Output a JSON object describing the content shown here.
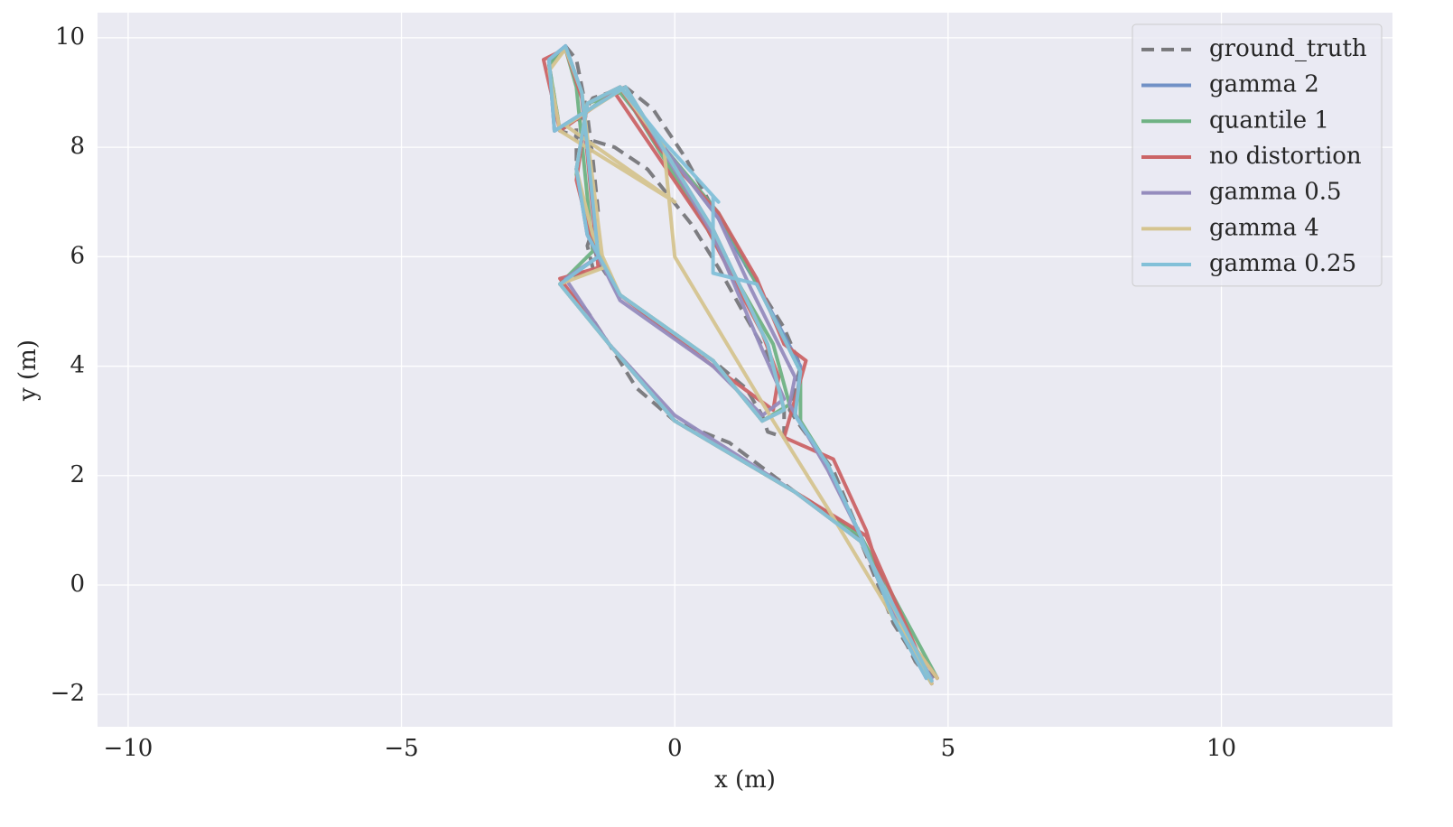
{
  "chart_data": {
    "type": "line",
    "xlabel": "x (m)",
    "ylabel": "y (m)",
    "xlim": [
      -10.56,
      13.13
    ],
    "ylim": [
      -2.59,
      10.46
    ],
    "xticks": [
      {
        "value": -10,
        "label": "−10"
      },
      {
        "value": -5,
        "label": "−5"
      },
      0,
      5,
      10
    ],
    "yticks": [
      {
        "value": -2,
        "label": "−2"
      },
      0,
      2,
      4,
      6,
      8,
      10
    ],
    "grid": true,
    "legend": "upper right",
    "series": [
      {
        "name": "ground_truth",
        "color": "#77777a",
        "linestyle": "dashed",
        "x": [
          4.7,
          4.4,
          4.0,
          3.7,
          3.4,
          2.9,
          2.6,
          2.3,
          2.1,
          2.2,
          2.3,
          2.0,
          1.5,
          0.8,
          0.2,
          -0.4,
          -0.9,
          -1.5,
          -1.8,
          -1.8,
          -1.6,
          -1.4,
          -1.0,
          -0.2,
          0.7,
          1.3,
          1.6,
          1.7,
          2.0,
          2.0,
          1.7,
          1.3,
          0.8,
          0.3,
          -0.5,
          -1.1,
          -2.1,
          -2.3,
          -2.0,
          -1.8,
          -1.6,
          -1.5,
          -1.4,
          -1.6,
          -1.5,
          -2.1,
          -1.6,
          -1.2,
          -0.7,
          0.0,
          1.0,
          2.2,
          3.0,
          3.4,
          4.0,
          4.5,
          4.8
        ],
        "values": [
          -1.75,
          -1.4,
          -0.6,
          0.2,
          0.9,
          2.1,
          2.5,
          2.9,
          3.2,
          3.6,
          4.0,
          4.7,
          5.5,
          6.7,
          7.8,
          8.7,
          9.1,
          8.9,
          8.4,
          7.6,
          6.6,
          5.9,
          5.3,
          4.7,
          4.1,
          3.6,
          3.1,
          2.8,
          2.7,
          3.3,
          4.2,
          4.9,
          5.8,
          6.6,
          7.6,
          8.0,
          8.3,
          9.5,
          9.85,
          9.6,
          8.6,
          7.8,
          6.8,
          6.2,
          5.8,
          5.5,
          5.0,
          4.4,
          3.6,
          3.0,
          2.6,
          1.7,
          1.2,
          0.8,
          -0.7,
          -1.5,
          -1.7
        ]
      },
      {
        "name": "gamma 2",
        "color": "#7191c6",
        "x": [
          4.6,
          4.0,
          3.4,
          2.8,
          2.2,
          2.3,
          1.5,
          0.8,
          -0.2,
          -1.0,
          -1.6,
          -1.8,
          -1.6,
          -1.0,
          0.7,
          1.6,
          2.0,
          1.7,
          0.7,
          -0.9,
          -2.2,
          -2.3,
          -2.0,
          -1.7,
          -1.4,
          -2.1,
          -1.2,
          0.0,
          2.2,
          3.4,
          4.7
        ],
        "values": [
          -1.7,
          -0.6,
          0.9,
          2.2,
          3.1,
          4.0,
          5.5,
          6.7,
          8.0,
          9.1,
          8.8,
          7.6,
          6.4,
          5.3,
          4.1,
          3.0,
          3.2,
          4.4,
          6.5,
          9.1,
          8.3,
          9.6,
          9.85,
          9.0,
          6.0,
          5.5,
          4.4,
          3.0,
          1.7,
          0.8,
          -1.75
        ]
      },
      {
        "name": "quantile 1",
        "color": "#6fb283",
        "x": [
          4.7,
          4.0,
          3.4,
          2.8,
          2.3,
          2.3,
          1.5,
          0.8,
          -0.2,
          -1.0,
          -1.6,
          -1.8,
          -1.5,
          -1.0,
          0.7,
          1.6,
          2.1,
          1.8,
          0.6,
          -1.0,
          -2.1,
          -2.3,
          -2.0,
          -1.8,
          -1.5,
          -2.1,
          -1.2,
          0.0,
          2.2,
          3.4,
          4.8
        ],
        "values": [
          -1.8,
          -0.6,
          0.9,
          2.2,
          3.0,
          3.9,
          5.5,
          6.8,
          8.0,
          9.0,
          8.8,
          7.5,
          6.3,
          5.3,
          4.1,
          3.0,
          3.3,
          4.4,
          6.5,
          9.1,
          8.3,
          9.5,
          9.8,
          9.1,
          6.1,
          5.5,
          4.4,
          3.0,
          1.7,
          0.9,
          -1.7
        ]
      },
      {
        "name": "no distortion",
        "color": "#cb6466",
        "x": [
          4.8,
          4.0,
          3.5,
          2.9,
          2.0,
          2.4,
          2.0,
          1.5,
          0.8,
          -0.3,
          -1.0,
          -1.6,
          -1.8,
          -1.5,
          -1.0,
          0.7,
          1.8,
          1.9,
          1.6,
          0.6,
          -1.1,
          -2.1,
          -2.4,
          -2.0,
          -1.7,
          -1.4,
          -2.1,
          -1.2,
          0.0,
          2.2,
          3.5,
          4.7
        ],
        "values": [
          -1.7,
          -0.6,
          1.0,
          2.3,
          2.7,
          4.1,
          4.4,
          5.6,
          6.8,
          8.0,
          9.1,
          8.8,
          7.4,
          6.2,
          5.3,
          4.0,
          3.2,
          3.8,
          4.6,
          6.5,
          9.0,
          8.3,
          9.6,
          9.8,
          8.9,
          5.8,
          5.6,
          4.4,
          3.0,
          1.7,
          0.9,
          -1.8
        ]
      },
      {
        "name": "gamma 0.5",
        "color": "#958cbd",
        "x": [
          4.7,
          4.0,
          3.4,
          2.8,
          2.1,
          2.2,
          1.4,
          0.8,
          -0.2,
          -1.0,
          -1.6,
          -1.8,
          -1.6,
          -1.0,
          0.7,
          1.6,
          2.0,
          1.6,
          0.7,
          -0.9,
          -2.2,
          -2.3,
          -2.0,
          -1.7,
          -1.4,
          -2.0,
          -1.2,
          0.0,
          2.2,
          3.4,
          4.6
        ],
        "values": [
          -1.7,
          -0.6,
          0.9,
          2.1,
          3.3,
          3.8,
          5.4,
          6.7,
          8.0,
          9.1,
          8.8,
          7.6,
          6.4,
          5.2,
          4.0,
          3.1,
          3.4,
          4.3,
          6.4,
          9.1,
          8.3,
          9.6,
          9.85,
          9.0,
          6.0,
          5.6,
          4.4,
          3.1,
          1.7,
          0.8,
          -1.7
        ]
      },
      {
        "name": "gamma 4",
        "color": "#d5c48f",
        "x": [
          4.8,
          4.0,
          2.8,
          1.8,
          0.9,
          0.0,
          -0.2,
          -1.0,
          -1.6,
          -1.8,
          -1.5,
          -1.0,
          0.7,
          1.6,
          2.0,
          1.7,
          0.7,
          -0.9,
          -2.0,
          0.0,
          -2.1,
          -2.3,
          -2.0,
          -1.7,
          -1.3,
          -2.1,
          -1.2,
          0.0,
          2.2,
          3.4,
          4.7
        ],
        "values": [
          -1.7,
          -0.6,
          1.4,
          3.0,
          4.5,
          6.0,
          8.0,
          9.1,
          8.8,
          7.6,
          6.4,
          5.3,
          4.1,
          3.0,
          3.2,
          4.4,
          6.5,
          9.1,
          8.4,
          7.0,
          8.3,
          9.4,
          9.8,
          9.0,
          5.8,
          5.5,
          4.4,
          3.0,
          1.7,
          0.8,
          -1.8
        ]
      },
      {
        "name": "gamma 0.25",
        "color": "#82c0d8",
        "x": [
          4.6,
          4.0,
          3.4,
          2.8,
          2.2,
          2.3,
          1.5,
          0.7,
          0.7,
          0.8,
          -0.2,
          -1.0,
          -1.6,
          -1.8,
          -1.6,
          -1.0,
          0.7,
          1.6,
          2.0,
          1.7,
          0.7,
          -0.9,
          -2.2,
          -2.3,
          -2.0,
          -1.7,
          -1.4,
          -2.1,
          -1.2,
          0.0,
          2.2,
          3.4,
          4.7
        ],
        "values": [
          -1.7,
          -0.6,
          0.9,
          2.2,
          3.1,
          3.9,
          5.5,
          5.7,
          7.1,
          7.0,
          8.1,
          9.1,
          8.8,
          7.6,
          6.4,
          5.3,
          4.1,
          3.0,
          3.2,
          4.4,
          6.5,
          9.1,
          8.3,
          9.6,
          9.85,
          9.0,
          6.0,
          5.5,
          4.4,
          3.0,
          1.7,
          0.8,
          -1.75
        ]
      }
    ]
  }
}
